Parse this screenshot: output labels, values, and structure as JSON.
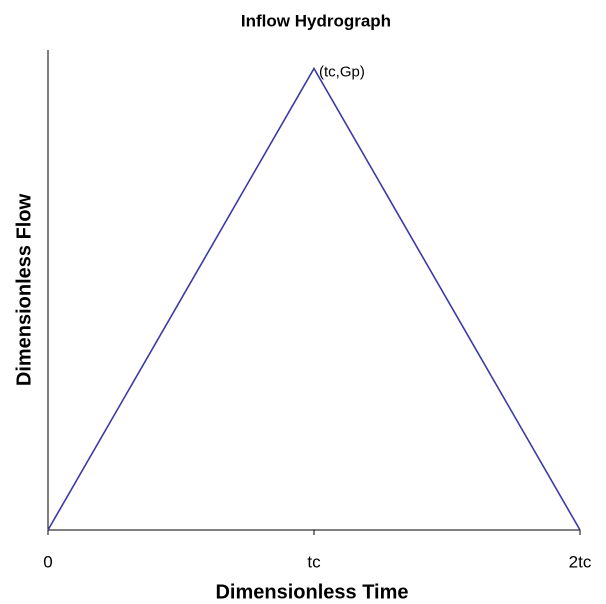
{
  "chart_data": {
    "type": "line",
    "title": "Inflow Hydrograph",
    "x_label": "Dimensionless Time",
    "y_label": "Dimensionless Flow",
    "x": [
      0,
      1,
      2
    ],
    "series": [
      {
        "color": "#3a3aa8",
        "values": [
          0,
          1,
          0
        ]
      }
    ],
    "xlim": [
      0,
      2
    ],
    "xticks": [
      0,
      {
        "value": 1,
        "label": "tc"
      },
      {
        "value": 2,
        "label": "2tc"
      }
    ],
    "ylim": [
      0,
      1.04
    ],
    "annotations": [
      {
        "text": "(tc,Gp)",
        "x": 1,
        "y": 1
      }
    ]
  }
}
